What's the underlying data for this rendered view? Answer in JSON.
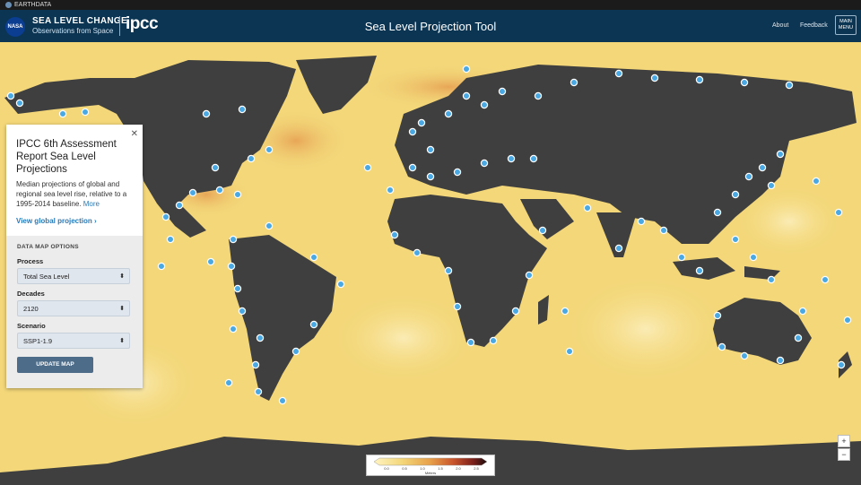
{
  "topbar": {
    "label": "EARTHDATA"
  },
  "header": {
    "nasa_logo": "NASA",
    "brand_line1": "SEA LEVEL CHANGE",
    "brand_line2": "Observations from Space",
    "ipcc_logo": "ipcc",
    "title": "Sea Level Projection Tool",
    "nav": [
      "About",
      "Feedback"
    ],
    "menu_label": "MAIN MENU"
  },
  "panel": {
    "title": "IPCC 6th Assessment Report Sea Level Projections",
    "description": "Median projections of global and regional sea level rise, relative to a 1995-2014 baseline.",
    "more_link": "More",
    "global_link": "View global projection ›",
    "options_heading": "DATA MAP OPTIONS",
    "process": {
      "label": "Process",
      "value": "Total Sea Level"
    },
    "decades": {
      "label": "Decades",
      "value": "2120"
    },
    "scenario": {
      "label": "Scenario",
      "value": "SSP1-1.9"
    },
    "button": "UPDATE MAP"
  },
  "zoom": {
    "in": "+",
    "out": "−"
  },
  "legend": {
    "ticks": [
      "0.0",
      "0.5",
      "1.0",
      "1.5",
      "2.0",
      "2.5"
    ],
    "unit": "Meters",
    "colors": [
      "#fff4c2",
      "#f3d779",
      "#e7a04a",
      "#c9552c",
      "#7a1f1a",
      "#1c0c0c"
    ]
  },
  "colors": {
    "header": "#0b3553",
    "ocean": "#f3d779",
    "land": "#3f3f3f",
    "station": "#4aa8e3"
  }
}
